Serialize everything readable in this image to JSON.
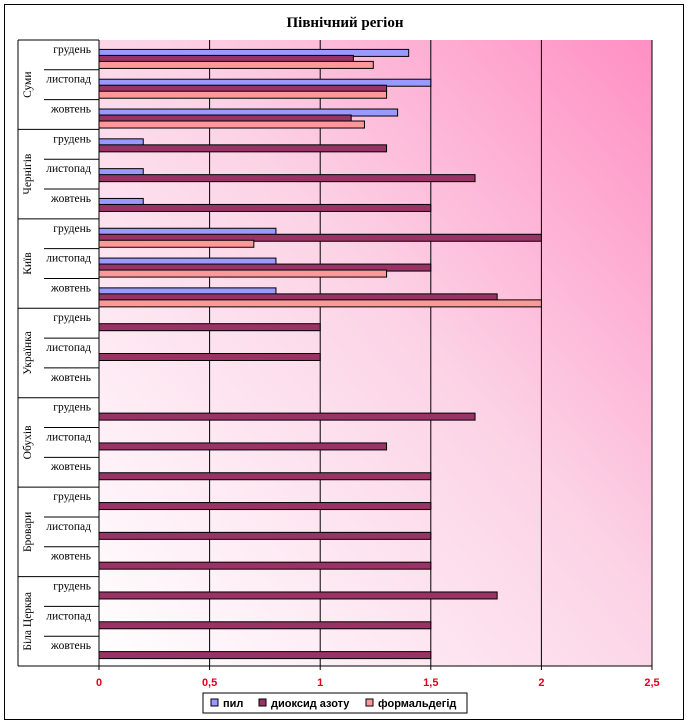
{
  "chart_data": {
    "type": "bar",
    "orientation": "horizontal",
    "title": "Північний регіон",
    "xlim": [
      0,
      2.5
    ],
    "x_ticks": [
      "0",
      "0,5",
      "1",
      "1,5",
      "2",
      "2,5"
    ],
    "grid": "vertical",
    "legend_position": "bottom",
    "series": [
      {
        "name": "пил",
        "color": "#9999ff"
      },
      {
        "name": "диоксид азоту",
        "color": "#993366"
      },
      {
        "name": "формальдегід",
        "color": "#ff9999"
      }
    ],
    "groups": [
      {
        "name": "Суми",
        "months": [
          {
            "label": "грудень",
            "values": [
              1.4,
              1.15,
              1.24
            ]
          },
          {
            "label": "листопад",
            "values": [
              1.5,
              1.3,
              1.3
            ]
          },
          {
            "label": "жовтень",
            "values": [
              1.35,
              1.14,
              1.2
            ]
          }
        ]
      },
      {
        "name": "Чернігів",
        "months": [
          {
            "label": "грудень",
            "values": [
              0.2,
              1.3,
              null
            ]
          },
          {
            "label": "листопад",
            "values": [
              0.2,
              1.7,
              null
            ]
          },
          {
            "label": "жовтень",
            "values": [
              0.2,
              1.5,
              null
            ]
          }
        ]
      },
      {
        "name": "Київ",
        "months": [
          {
            "label": "грудень",
            "values": [
              0.8,
              2.0,
              0.7
            ]
          },
          {
            "label": "листопад",
            "values": [
              0.8,
              1.5,
              1.3
            ]
          },
          {
            "label": "жовтень",
            "values": [
              0.8,
              1.8,
              2.0
            ]
          }
        ]
      },
      {
        "name": "Українка",
        "months": [
          {
            "label": "грудень",
            "values": [
              null,
              1.0,
              null
            ]
          },
          {
            "label": "листопад",
            "values": [
              null,
              1.0,
              null
            ]
          },
          {
            "label": "жовтень",
            "values": [
              null,
              null,
              null
            ]
          }
        ]
      },
      {
        "name": "Обухів",
        "months": [
          {
            "label": "грудень",
            "values": [
              null,
              1.7,
              null
            ]
          },
          {
            "label": "листопад",
            "values": [
              null,
              1.3,
              null
            ]
          },
          {
            "label": "жовтень",
            "values": [
              null,
              1.5,
              null
            ]
          }
        ]
      },
      {
        "name": "Бровари",
        "months": [
          {
            "label": "грудень",
            "values": [
              null,
              1.5,
              null
            ]
          },
          {
            "label": "листопад",
            "values": [
              null,
              1.5,
              null
            ]
          },
          {
            "label": "жовтень",
            "values": [
              null,
              1.5,
              null
            ]
          }
        ]
      },
      {
        "name": "Біла Церква",
        "months": [
          {
            "label": "грудень",
            "values": [
              null,
              1.8,
              null
            ]
          },
          {
            "label": "листопад",
            "values": [
              null,
              1.5,
              null
            ]
          },
          {
            "label": "жовтень",
            "values": [
              null,
              1.5,
              null
            ]
          }
        ]
      }
    ]
  }
}
